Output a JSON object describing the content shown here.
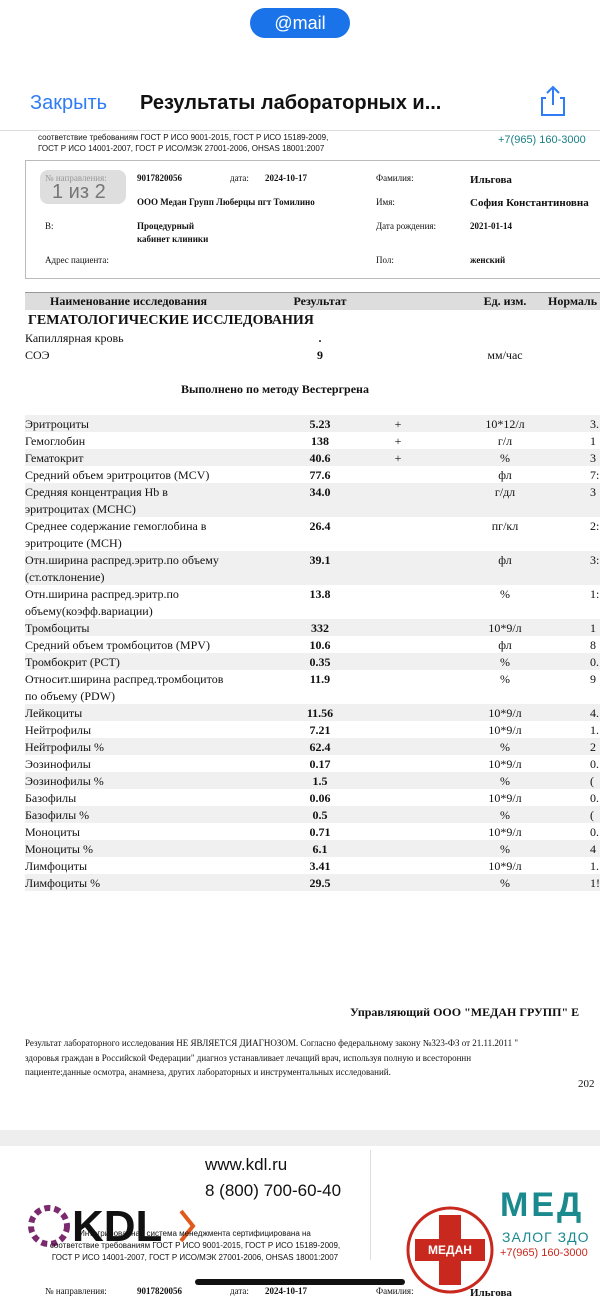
{
  "app": {
    "badge": "@mail",
    "close": "Закрыть",
    "title": "Результаты лабораторных и...",
    "page_indicator": "1 из 2"
  },
  "page1": {
    "cert_lines": [
      "соответствие требованиям ГОСТ Р ИСО 9001-2015, ГОСТ Р ИСО 15189-2009,",
      "ГОСТ Р ИСО 14001-2007, ГОСТ Р ИСО/МЭК 27001-2006, OHSAS 18001:2007"
    ],
    "phone": "+7(965) 160-3000",
    "info": {
      "referral_label": "№ направления:",
      "referral": "9017820056",
      "date_label": "дата:",
      "date": "2024-10-17",
      "surname_label": "Фамилия:",
      "surname": "Ильгова",
      "org": "ООО Медан Групп Люберцы пгт Томилино",
      "name_label": "Имя:",
      "name": "София Константиновна",
      "in_label": "В:",
      "place": [
        "Процедурный",
        "кабинет клиники"
      ],
      "birth_label": "Дата рождения:",
      "birth": "2021-01-14",
      "address_label": "Адрес пациента:",
      "sex_label": "Пол:",
      "sex": "женский"
    },
    "table": {
      "headers": [
        "Наименование исследования",
        "Результат",
        "Ед. изм.",
        "Нормаль"
      ],
      "section": "ГЕМАТОЛОГИЧЕСКИЕ ИССЛЕДОВАНИЯ",
      "pre_rows": [
        {
          "name": "Капиллярная кровь",
          "result": "."
        },
        {
          "name": "СОЭ",
          "result": "9",
          "unit": "мм/час"
        }
      ],
      "method": "Выполнено по методу Вестергрена",
      "rows": [
        {
          "name": [
            "Эритроциты"
          ],
          "result": "5.23",
          "flag": "+",
          "unit": "10*12/л",
          "norm": "3."
        },
        {
          "name": [
            "Гемоглобин"
          ],
          "result": "138",
          "flag": "+",
          "unit": "г/л",
          "norm": "1"
        },
        {
          "name": [
            "Гематокрит"
          ],
          "result": "40.6",
          "flag": "+",
          "unit": "%",
          "norm": "3"
        },
        {
          "name": [
            "Средний объем эритроцитов (MCV)"
          ],
          "result": "77.6",
          "unit": "фл",
          "norm": "7:"
        },
        {
          "name": [
            "Средняя концентрация Hb в",
            "эритроцитах (MCHC)"
          ],
          "result": "34.0",
          "unit": "г/дл",
          "norm": "3"
        },
        {
          "name": [
            "Среднее содержание гемоглобина в",
            "эритроците (MCH)"
          ],
          "result": "26.4",
          "unit": "пг/кл",
          "norm": "2:"
        },
        {
          "name": [
            "Отн.ширина распред.эритр.по объему",
            "(ст.отклонение)"
          ],
          "result": "39.1",
          "unit": "фл",
          "norm": "3:"
        },
        {
          "name": [
            "Отн.ширина распред.эритр.по",
            "объему(коэфф.вариации)"
          ],
          "result": "13.8",
          "unit": "%",
          "norm": "1:"
        },
        {
          "name": [
            "Тромбоциты"
          ],
          "result": "332",
          "unit": "10*9/л",
          "norm": "1"
        },
        {
          "name": [
            "Средний объем тромбоцитов (MPV)"
          ],
          "result": "10.6",
          "unit": "фл",
          "norm": "8"
        },
        {
          "name": [
            "Тромбокрит (PCT)"
          ],
          "result": "0.35",
          "unit": "%",
          "norm": "0."
        },
        {
          "name": [
            "Относит.ширина распред.тромбоцитов",
            "по объему (PDW)"
          ],
          "result": "11.9",
          "unit": "%",
          "norm": "9"
        },
        {
          "name": [
            "Лейкоциты"
          ],
          "result": "11.56",
          "unit": "10*9/л",
          "norm": "4."
        },
        {
          "name": [
            "Нейтрофилы"
          ],
          "result": "7.21",
          "unit": "10*9/л",
          "norm": "1."
        },
        {
          "name": [
            "Нейтрофилы %"
          ],
          "result": "62.4",
          "unit": "%",
          "norm": "2"
        },
        {
          "name": [
            "Эозинофилы"
          ],
          "result": "0.17",
          "unit": "10*9/л",
          "norm": "0."
        },
        {
          "name": [
            "Эозинофилы %"
          ],
          "result": "1.5",
          "unit": "%",
          "norm": "("
        },
        {
          "name": [
            "Базофилы"
          ],
          "result": "0.06",
          "unit": "10*9/л",
          "norm": "0."
        },
        {
          "name": [
            "Базофилы %"
          ],
          "result": "0.5",
          "unit": "%",
          "norm": "("
        },
        {
          "name": [
            "Моноциты"
          ],
          "result": "0.71",
          "unit": "10*9/л",
          "norm": "0."
        },
        {
          "name": [
            "Моноциты %"
          ],
          "result": "6.1",
          "unit": "%",
          "norm": "4"
        },
        {
          "name": [
            "Лимфоциты"
          ],
          "result": "3.41",
          "unit": "10*9/л",
          "norm": "1."
        },
        {
          "name": [
            "Лимфоциты %"
          ],
          "result": "29.5",
          "unit": "%",
          "norm": "1!"
        }
      ]
    },
    "signature": "Управляющий ООО \"МЕДАН ГРУПП\" Е",
    "disclaimer": [
      "Результат лабораторного исследования НЕ ЯВЛЯЕТСЯ ДИАГНОЗОМ. Согласно федеральному закону №323-ФЗ от 21.11.2011 \"",
      "здоровья граждан в Российской Федерации\" диагноз устанавливает лечащий врач, используя полную и всестороннн",
      "пациенте:данные осмотра, анамнеза, других лабораторных и инструментальных исследований."
    ],
    "date_cut": "202"
  },
  "page2": {
    "logo": "KDL",
    "site": "www.kdl.ru",
    "hotline": "8 (800) 700-60-40",
    "cert_lines": [
      "Интегрированная система менеджмента сертифицирована на",
      "соответствие требованиям ГОСТ Р ИСО 9001-2015, ГОСТ Р ИСО 15189-2009,",
      "ГОСТ Р ИСО 14001-2007, ГОСТ Р ИСО/МЭК 27001-2006, OHSAS 18001:2007"
    ],
    "cross_text": "МЕДАН",
    "brand": "МЕД",
    "slogan": "ЗАЛОГ ЗДО",
    "phone": "+7(965) 160-3000",
    "referral_label": "№ направления:",
    "referral": "9017820056",
    "date_label": "дата:",
    "date": "2024-10-17",
    "surname_label": "Фамилия:",
    "surname": "Ильгова"
  }
}
